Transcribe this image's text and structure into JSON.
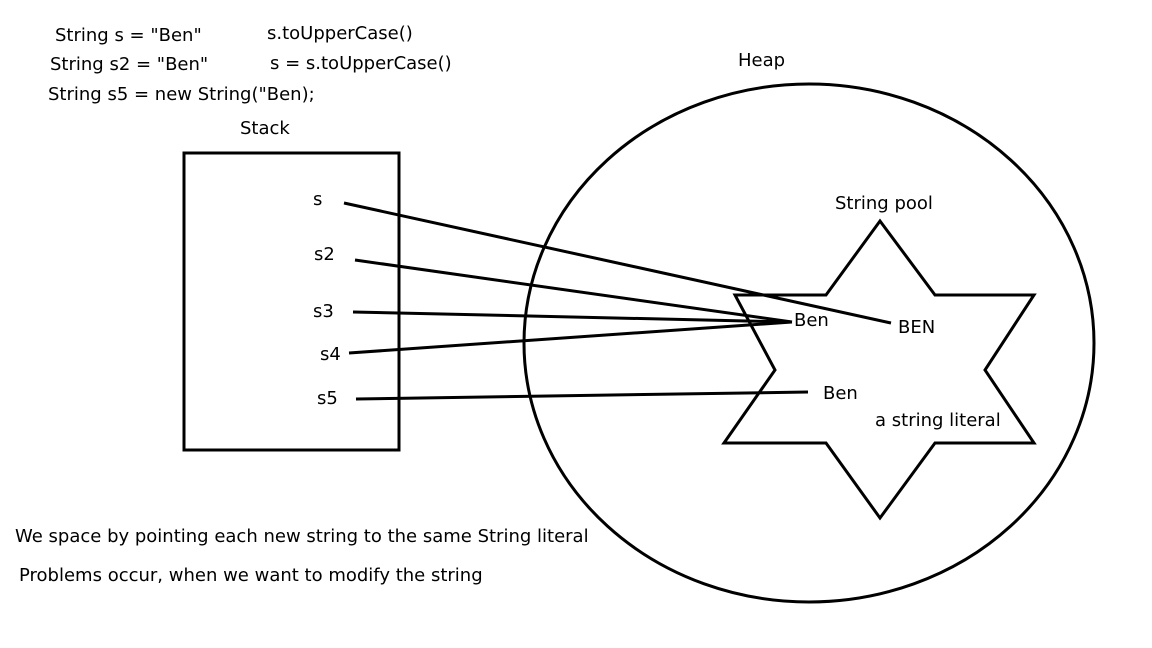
{
  "code": {
    "line1": "String s = \"Ben\"",
    "line2": "String s2 = \"Ben\"",
    "line3": "String s5 = new String(\"Ben);",
    "call1": "s.toUpperCase()",
    "call2": "s = s.toUpperCase()"
  },
  "stack": {
    "title": "Stack",
    "vars": [
      "s",
      "s2",
      "s3",
      "s4",
      "s5"
    ]
  },
  "heap": {
    "title": "Heap",
    "pool_title": "String pool",
    "ben_pool": "Ben",
    "ben_upper": "BEN",
    "ben_literal": "Ben",
    "literal_label": "a string literal"
  },
  "notes": {
    "note1": "We space by pointing each new string to the same String literal",
    "note2": "Problems occur, when we want to modify the string"
  }
}
